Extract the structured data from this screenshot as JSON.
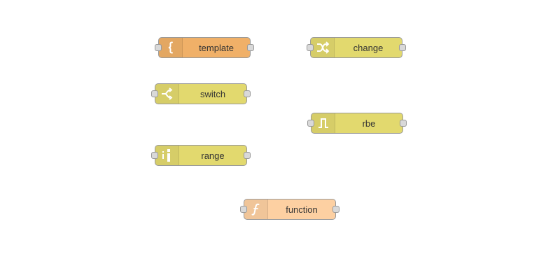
{
  "nodes": {
    "template": {
      "label": "template",
      "icon": "template-icon",
      "color": "#f0b068"
    },
    "change": {
      "label": "change",
      "icon": "change-icon",
      "color": "#e2d96e"
    },
    "switch": {
      "label": "switch",
      "icon": "switch-icon",
      "color": "#e2d96e"
    },
    "rbe": {
      "label": "rbe",
      "icon": "rbe-icon",
      "color": "#e2d96e"
    },
    "range": {
      "label": "range",
      "icon": "range-icon",
      "color": "#e2d96e"
    },
    "function": {
      "label": "function",
      "icon": "function-icon",
      "color": "#fdd0a2"
    }
  }
}
